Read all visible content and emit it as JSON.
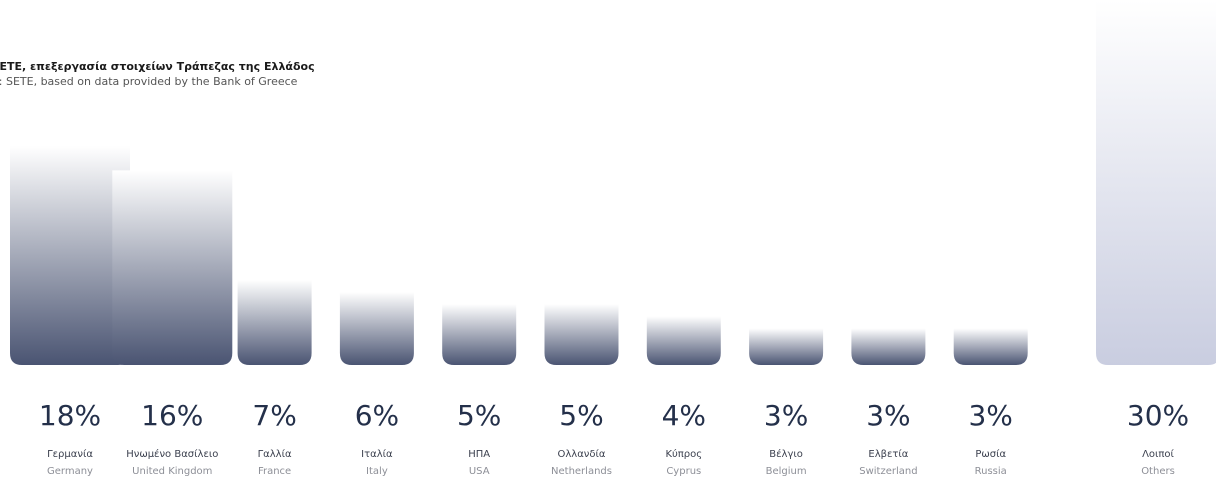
{
  "source": {
    "greek": "ΣΕΤΕ, επεξεργασία στοιχείων Τράπεζας της Ελλάδος",
    "english": "e: SETE, based on data provided by the Bank of Greece"
  },
  "chart_data": {
    "type": "bar",
    "title": "",
    "xlabel": "",
    "ylabel": "",
    "unit": "%",
    "categories": [
      {
        "greek": "Γερμανία",
        "english": "Germany"
      },
      {
        "greek": "Ηνωμένο Βασίλειο",
        "english": "United Kingdom"
      },
      {
        "greek": "Γαλλία",
        "english": "France"
      },
      {
        "greek": "Ιταλία",
        "english": "Italy"
      },
      {
        "greek": "ΗΠΑ",
        "english": "USA"
      },
      {
        "greek": "Ολλανδία",
        "english": "Netherlands"
      },
      {
        "greek": "Κύπρος",
        "english": "Cyprus"
      },
      {
        "greek": "Βέλγιο",
        "english": "Belgium"
      },
      {
        "greek": "Ελβετία",
        "english": "Switzerland"
      },
      {
        "greek": "Ρωσία",
        "english": "Russia"
      },
      {
        "greek": "Λοιποί",
        "english": "Others"
      }
    ],
    "values": [
      18,
      16,
      7,
      6,
      5,
      5,
      4,
      3,
      3,
      3,
      30
    ],
    "value_labels": [
      "18%",
      "16%",
      "7%",
      "6%",
      "5%",
      "5%",
      "4%",
      "3%",
      "3%",
      "3%",
      "30%"
    ],
    "ylim": [
      0,
      30
    ],
    "grid": false,
    "legend": "none",
    "colors": {
      "bar_bottom": "#4a5472",
      "bar_top": "#ffffff",
      "others_bottom": "#c9cde0"
    }
  }
}
